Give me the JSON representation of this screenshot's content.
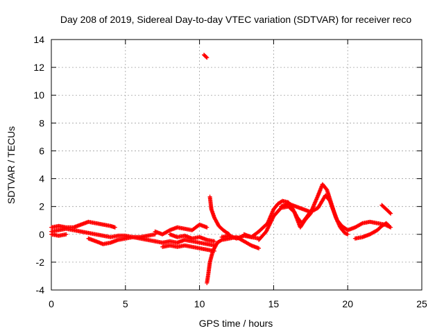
{
  "chart_data": {
    "type": "scatter",
    "title": "Day 208 of 2019, Sidereal Day-to-day VTEC variation (SDTVAR) for receiver reco",
    "xlabel": "GPS time / hours",
    "ylabel": "SDTVAR / TECUs",
    "xlim": [
      0,
      25
    ],
    "ylim": [
      -4,
      14
    ],
    "xticks": [
      0,
      5,
      10,
      15,
      20,
      25
    ],
    "yticks": [
      -4,
      -2,
      0,
      2,
      4,
      6,
      8,
      10,
      12,
      14
    ],
    "grid": true,
    "marker": "+",
    "series": [
      {
        "name": "SDTVAR",
        "color": "#ff0000",
        "tracks": [
          [
            [
              0,
              0.5
            ],
            [
              0.5,
              0.6
            ],
            [
              1,
              0.5
            ],
            [
              1.5,
              0.5
            ],
            [
              2,
              0.7
            ],
            [
              2.5,
              0.9
            ],
            [
              3,
              0.8
            ],
            [
              3.5,
              0.7
            ],
            [
              4,
              0.6
            ],
            [
              4.3,
              0.5
            ]
          ],
          [
            [
              0,
              0.2
            ],
            [
              0.5,
              0.3
            ],
            [
              1,
              0.4
            ],
            [
              1.5,
              0.3
            ],
            [
              2,
              0.2
            ],
            [
              2.5,
              0.1
            ],
            [
              3,
              0.0
            ],
            [
              3.5,
              -0.1
            ],
            [
              4,
              -0.2
            ],
            [
              4.5,
              -0.1
            ],
            [
              5,
              -0.1
            ],
            [
              5.5,
              -0.2
            ],
            [
              6,
              -0.2
            ],
            [
              6.5,
              -0.1
            ],
            [
              7,
              0.0
            ]
          ],
          [
            [
              0,
              0.0
            ],
            [
              0.5,
              -0.1
            ],
            [
              1,
              0.0
            ]
          ],
          [
            [
              2.5,
              -0.3
            ],
            [
              3,
              -0.5
            ],
            [
              3.5,
              -0.7
            ],
            [
              4,
              -0.6
            ],
            [
              4.5,
              -0.4
            ],
            [
              5,
              -0.3
            ],
            [
              5.5,
              -0.2
            ],
            [
              6,
              -0.3
            ],
            [
              6.5,
              -0.4
            ],
            [
              7,
              -0.5
            ]
          ],
          [
            [
              7,
              0.2
            ],
            [
              7.5,
              0.0
            ],
            [
              8,
              0.3
            ],
            [
              8.5,
              0.5
            ],
            [
              9,
              0.4
            ],
            [
              9.5,
              0.3
            ],
            [
              10,
              0.7
            ],
            [
              10.5,
              0.5
            ]
          ],
          [
            [
              7,
              -0.5
            ],
            [
              7.5,
              -0.6
            ],
            [
              8,
              -0.5
            ],
            [
              8.5,
              -0.6
            ],
            [
              9,
              -0.4
            ],
            [
              9.5,
              -0.5
            ],
            [
              10,
              -0.6
            ],
            [
              10.5,
              -0.7
            ],
            [
              11,
              -0.8
            ]
          ],
          [
            [
              7.5,
              -0.9
            ],
            [
              8,
              -0.8
            ],
            [
              8.5,
              -0.9
            ],
            [
              9,
              -0.8
            ],
            [
              9.5,
              -0.9
            ],
            [
              10,
              -1.0
            ],
            [
              10.5,
              -1.1
            ],
            [
              11,
              -1.2
            ]
          ],
          [
            [
              8,
              0.0
            ],
            [
              8.5,
              -0.2
            ],
            [
              9,
              -0.1
            ],
            [
              9.5,
              -0.3
            ],
            [
              10,
              -0.2
            ],
            [
              10.5,
              -0.4
            ],
            [
              11,
              -0.5
            ]
          ],
          [
            [
              10.5,
              -3.5
            ],
            [
              10.6,
              -2.8
            ],
            [
              10.7,
              -2.0
            ],
            [
              10.9,
              -1.2
            ],
            [
              11.2,
              -0.6
            ],
            [
              11.5,
              -0.4
            ],
            [
              12,
              -0.3
            ],
            [
              12.5,
              -0.2
            ],
            [
              13,
              -0.5
            ],
            [
              13.5,
              -0.8
            ],
            [
              14,
              -1.0
            ]
          ],
          [
            [
              10.7,
              2.7
            ],
            [
              10.8,
              1.8
            ],
            [
              11,
              1.2
            ],
            [
              11.3,
              0.6
            ],
            [
              11.6,
              0.3
            ],
            [
              12,
              0.0
            ]
          ],
          [
            [
              11.5,
              -0.2
            ],
            [
              12,
              -0.1
            ],
            [
              12.5,
              -0.3
            ],
            [
              13,
              -0.1
            ],
            [
              13.5,
              -0.2
            ],
            [
              14,
              -0.3
            ]
          ],
          [
            [
              13,
              0.0
            ],
            [
              13.5,
              -0.2
            ],
            [
              14,
              0.2
            ],
            [
              14.3,
              0.5
            ],
            [
              14.6,
              0.8
            ],
            [
              14.8,
              1.3
            ],
            [
              15,
              1.8
            ],
            [
              15.3,
              2.2
            ],
            [
              15.6,
              2.4
            ],
            [
              16,
              2.3
            ],
            [
              16.3,
              1.8
            ],
            [
              16.6,
              1.2
            ],
            [
              16.9,
              0.8
            ],
            [
              17.2,
              1.2
            ],
            [
              17.6,
              1.8
            ],
            [
              18,
              2.8
            ],
            [
              18.3,
              3.6
            ],
            [
              18.6,
              3.2
            ],
            [
              18.9,
              2.2
            ],
            [
              19.2,
              1.2
            ],
            [
              19.5,
              0.5
            ],
            [
              19.8,
              0.1
            ],
            [
              20,
              0.0
            ]
          ],
          [
            [
              15.5,
              2.0
            ],
            [
              16,
              2.2
            ],
            [
              16.5,
              2.0
            ],
            [
              17,
              1.8
            ],
            [
              17.5,
              1.6
            ],
            [
              18,
              1.9
            ],
            [
              18.5,
              2.8
            ],
            [
              18.8,
              2.4
            ],
            [
              19,
              1.8
            ],
            [
              19.3,
              1.0
            ],
            [
              19.6,
              0.6
            ],
            [
              20,
              0.3
            ],
            [
              20.5,
              0.5
            ],
            [
              21,
              0.8
            ],
            [
              21.5,
              0.9
            ],
            [
              22,
              0.8
            ],
            [
              22.5,
              0.7
            ],
            [
              22.9,
              0.5
            ]
          ],
          [
            [
              14,
              -0.4
            ],
            [
              14.5,
              0.2
            ],
            [
              15,
              1.3
            ],
            [
              15.5,
              1.9
            ],
            [
              16,
              2.0
            ],
            [
              16.4,
              1.6
            ],
            [
              16.8,
              0.5
            ],
            [
              17.1,
              1.0
            ],
            [
              17.5,
              1.5
            ]
          ],
          [
            [
              20.5,
              -0.3
            ],
            [
              21,
              -0.2
            ],
            [
              21.5,
              0.0
            ],
            [
              22,
              0.3
            ],
            [
              22.3,
              0.6
            ],
            [
              22.6,
              0.8
            ],
            [
              22.8,
              0.6
            ]
          ],
          [
            [
              22.3,
              2.1
            ],
            [
              22.6,
              1.8
            ],
            [
              22.9,
              1.5
            ]
          ],
          [
            [
              10.3,
              12.9
            ],
            [
              10.4,
              12.8
            ],
            [
              10.5,
              12.7
            ]
          ]
        ]
      }
    ]
  }
}
